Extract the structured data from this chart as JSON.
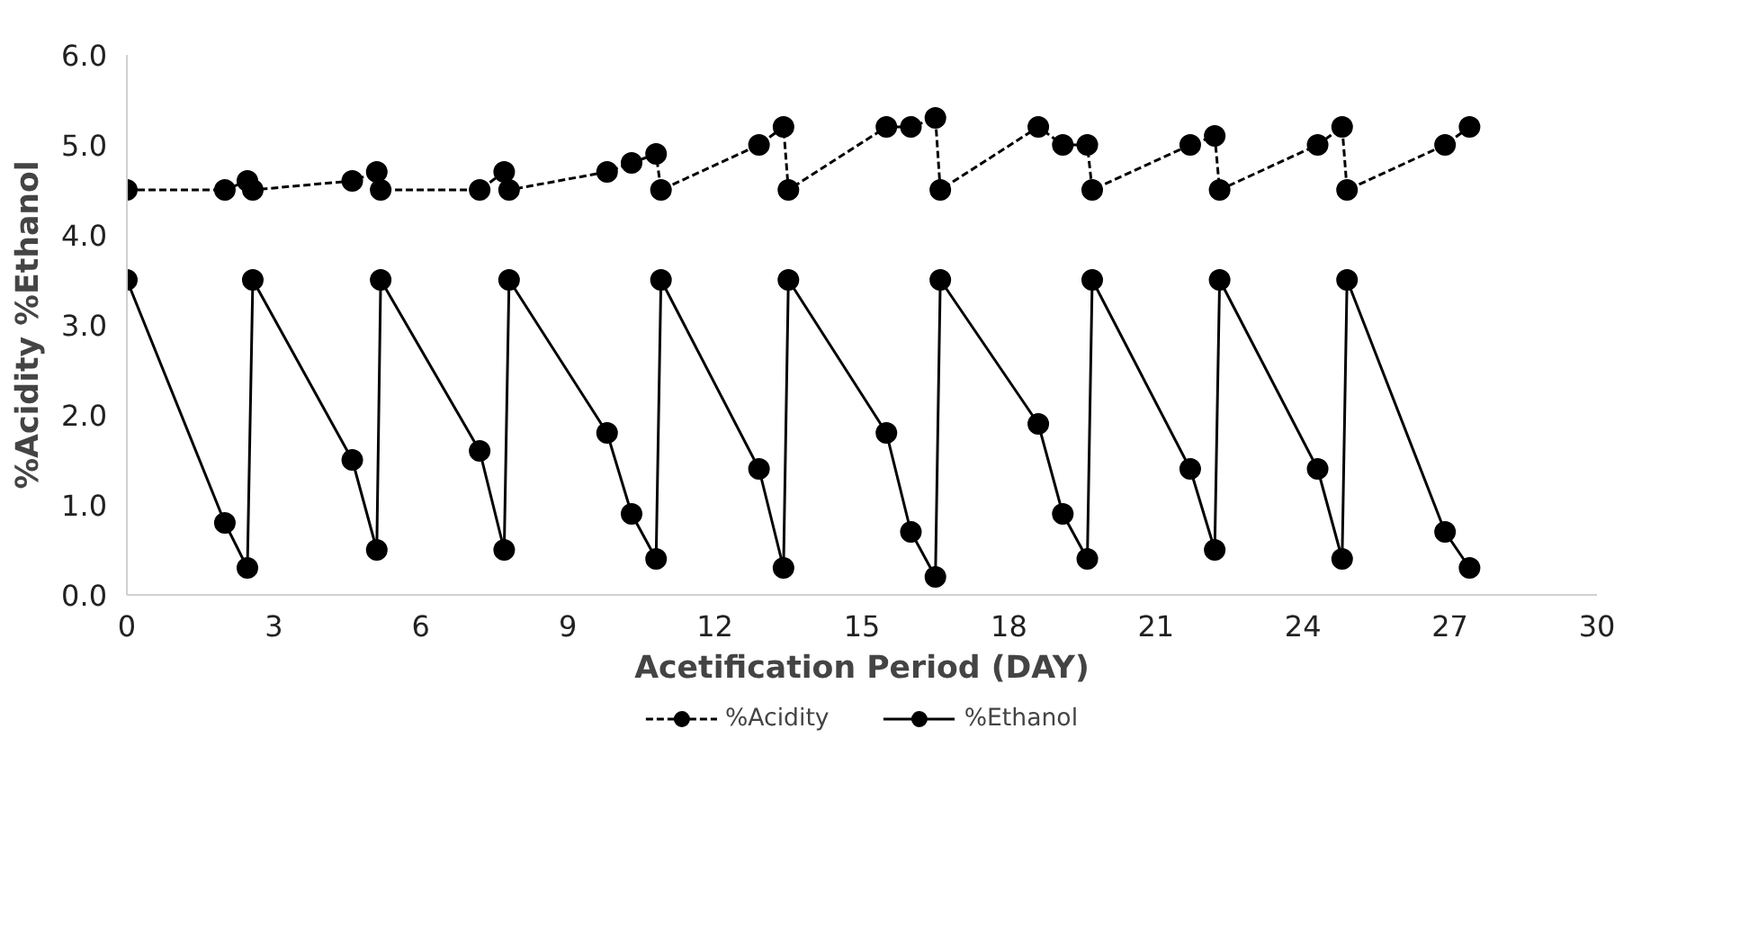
{
  "chart_data": {
    "type": "line",
    "xlabel": "Acetification Period (DAY)",
    "ylabel": "%Acidity %Ethanol",
    "xlim": [
      0,
      30
    ],
    "xticks": [
      0,
      3,
      6,
      9,
      12,
      15,
      18,
      21,
      24,
      27,
      30
    ],
    "ylim": [
      0,
      6
    ],
    "yticks": [
      {
        "value": 0,
        "label": "0.0"
      },
      {
        "value": 1,
        "label": "1.0"
      },
      {
        "value": 2,
        "label": "2.0"
      },
      {
        "value": 3,
        "label": "3.0"
      },
      {
        "value": 4,
        "label": "4.0"
      },
      {
        "value": 5,
        "label": "5.0"
      },
      {
        "value": 6,
        "label": "6.0"
      }
    ],
    "grid": false,
    "legend": "bottom",
    "marker": "circle",
    "x": [
      0,
      2.0,
      2.46,
      2.57,
      4.6,
      5.1,
      5.18,
      7.2,
      7.7,
      7.8,
      9.8,
      10.3,
      10.8,
      10.9,
      12.9,
      13.4,
      13.5,
      15.5,
      16.0,
      16.5,
      16.6,
      18.6,
      19.1,
      19.6,
      19.7,
      21.7,
      22.2,
      22.3,
      24.3,
      24.8,
      24.9,
      26.9,
      27.4
    ],
    "series": [
      {
        "name": "%Acidity",
        "color": "#000000",
        "line_style": "dashed",
        "values": [
          4.5,
          4.5,
          4.6,
          4.5,
          4.6,
          4.7,
          4.5,
          4.5,
          4.7,
          4.5,
          4.7,
          4.8,
          4.9,
          4.5,
          5.0,
          5.2,
          4.5,
          5.2,
          5.2,
          5.3,
          4.5,
          5.2,
          5.0,
          5.0,
          4.5,
          5.0,
          5.1,
          4.5,
          5.0,
          5.2,
          4.5,
          5.0,
          5.2
        ]
      },
      {
        "name": "%Ethanol",
        "color": "#000000",
        "line_style": "solid",
        "values": [
          3.5,
          0.8,
          0.3,
          3.5,
          1.5,
          0.5,
          3.5,
          1.6,
          0.5,
          3.5,
          1.8,
          0.9,
          0.4,
          3.5,
          1.4,
          0.3,
          3.5,
          1.8,
          0.7,
          0.2,
          3.5,
          1.9,
          0.9,
          0.4,
          3.5,
          1.4,
          0.5,
          3.5,
          1.4,
          0.4,
          3.5,
          0.7,
          0.3
        ]
      }
    ]
  }
}
